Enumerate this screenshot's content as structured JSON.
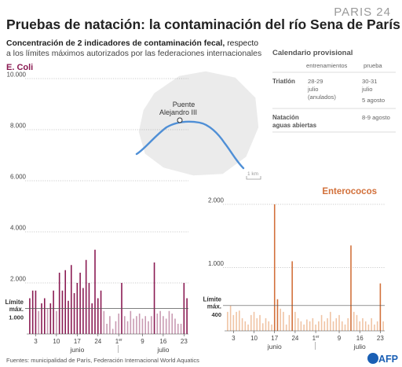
{
  "header": {
    "title": "Pruebas de natación: la contaminación del río Sena de París",
    "logo": "PARIS 24",
    "subtitle_bold": "Concentración de 2 indicadores de contaminación fecal,",
    "subtitle_rest_1": " respecto",
    "subtitle_line2": "a los límites máximos autorizados por las federaciones internacionales"
  },
  "schedule": {
    "title": "Calendario provisional",
    "col_training": "entrenamientos",
    "col_race": "prueba",
    "rows": [
      {
        "event": "Triatlón",
        "training": [
          "28-29",
          "julio",
          "(anulados)"
        ],
        "race": [
          "30-31",
          "julio",
          "5 agosto"
        ]
      },
      {
        "event": [
          "Natación",
          "aguas abiertas"
        ],
        "training": [],
        "race": [
          "8-9 agosto"
        ]
      }
    ]
  },
  "map": {
    "label": [
      "Puente",
      "Alejandro III"
    ],
    "scale": "1 km"
  },
  "footer": {
    "source": "Fuentes: municipalidad de París, Federación Internacional World Aquatics",
    "agency": "AFP"
  },
  "colors": {
    "ecoli": "#8a1a52",
    "ecoli_light": "#c99ab2",
    "entero": "#d2703a",
    "entero_light": "#f0c3a3",
    "title": "#222222",
    "logo": "#9a9a9a"
  },
  "chart_data": [
    {
      "type": "bar",
      "title": "E. Coli",
      "ylim": [
        0,
        10000
      ],
      "yticks": [
        "10.000",
        "8.000",
        "6.000",
        "4.000",
        "2.000"
      ],
      "ytick_values": [
        10000,
        8000,
        6000,
        4000,
        2000
      ],
      "limit_label": [
        "Límite",
        "máx.",
        "1.000"
      ],
      "limit_value": 1000,
      "x_ticks": [
        {
          "day": 3,
          "label": "3"
        },
        {
          "day": 10,
          "label": "10"
        },
        {
          "day": 17,
          "label": "17"
        },
        {
          "day": 24,
          "label": "24"
        },
        {
          "day": 31,
          "label": "1"
        },
        {
          "day": 39,
          "label": "9"
        },
        {
          "day": 46,
          "label": "16"
        },
        {
          "day": 53,
          "label": "23"
        }
      ],
      "first_marker": "er",
      "months": [
        {
          "day": 17,
          "label": "junio"
        },
        {
          "day": 46,
          "label": "julio"
        }
      ],
      "grid": true,
      "x": [
        1,
        2,
        3,
        4,
        5,
        6,
        7,
        8,
        9,
        10,
        11,
        12,
        13,
        14,
        15,
        16,
        17,
        18,
        19,
        20,
        21,
        22,
        23,
        24,
        25,
        26,
        27,
        28,
        29,
        30,
        31,
        32,
        33,
        34,
        35,
        36,
        37,
        38,
        39,
        40,
        41,
        42,
        43,
        44,
        45,
        46,
        47,
        48,
        49,
        50,
        51,
        52,
        53,
        54
      ],
      "values": [
        1400,
        1700,
        1700,
        900,
        1200,
        1400,
        1000,
        1200,
        1700,
        900,
        2400,
        1700,
        2500,
        1300,
        2700,
        1600,
        2000,
        2400,
        1800,
        2900,
        2000,
        1200,
        3300,
        1400,
        1700,
        900,
        400,
        700,
        200,
        500,
        800,
        2000,
        700,
        500,
        900,
        600,
        700,
        800,
        600,
        700,
        500,
        700,
        2800,
        800,
        900,
        700,
        600,
        900,
        800,
        600,
        400,
        400,
        2000,
        1400
      ]
    },
    {
      "type": "bar",
      "title": "Enterococos",
      "ylim": [
        0,
        2000
      ],
      "yticks": [
        "2.000",
        "1.000"
      ],
      "ytick_values": [
        2000,
        1000
      ],
      "limit_label": [
        "Límite",
        "máx.",
        "400"
      ],
      "limit_value": 400,
      "x_ticks": [
        {
          "day": 3,
          "label": "3"
        },
        {
          "day": 10,
          "label": "10"
        },
        {
          "day": 17,
          "label": "17"
        },
        {
          "day": 24,
          "label": "24"
        },
        {
          "day": 31,
          "label": "1"
        },
        {
          "day": 39,
          "label": "9"
        },
        {
          "day": 46,
          "label": "16"
        },
        {
          "day": 53,
          "label": "23"
        }
      ],
      "first_marker": "er",
      "months": [
        {
          "day": 17,
          "label": "junio"
        },
        {
          "day": 46,
          "label": "julio"
        }
      ],
      "grid": true,
      "x": [
        1,
        2,
        3,
        4,
        5,
        6,
        7,
        8,
        9,
        10,
        11,
        12,
        13,
        14,
        15,
        16,
        17,
        18,
        19,
        20,
        21,
        22,
        23,
        24,
        25,
        26,
        27,
        28,
        29,
        30,
        31,
        32,
        33,
        34,
        35,
        36,
        37,
        38,
        39,
        40,
        41,
        42,
        43,
        44,
        45,
        46,
        47,
        48,
        49,
        50,
        51,
        52,
        53,
        54
      ],
      "values": [
        300,
        400,
        250,
        300,
        320,
        200,
        150,
        100,
        250,
        300,
        200,
        250,
        120,
        200,
        150,
        100,
        2000,
        500,
        350,
        300,
        100,
        250,
        1100,
        300,
        200,
        150,
        100,
        180,
        150,
        200,
        100,
        150,
        250,
        150,
        200,
        300,
        150,
        200,
        250,
        150,
        100,
        200,
        1350,
        300,
        250,
        150,
        200,
        150,
        100,
        200,
        100,
        150,
        750,
        150
      ]
    }
  ]
}
